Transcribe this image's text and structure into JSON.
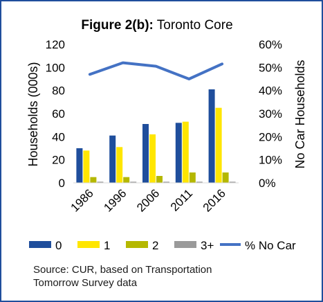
{
  "chart_data": {
    "type": "bar",
    "title_bold": "Figure 2(b):",
    "title_rest": " Toronto Core",
    "categories": [
      "1986",
      "1996",
      "2006",
      "2011",
      "2016"
    ],
    "ylabel": "Households (000s)",
    "ylabel_right": "No Car Households",
    "ylim": [
      0,
      120
    ],
    "yticks": [
      "0",
      "20",
      "40",
      "60",
      "80",
      "100",
      "120"
    ],
    "ylim_right": [
      0,
      60
    ],
    "yticks_right": [
      "0%",
      "10%",
      "20%",
      "30%",
      "40%",
      "50%",
      "60%"
    ],
    "grid": false,
    "legend_position": "bottom",
    "series": [
      {
        "name": "0",
        "color": "#1f4e9c",
        "values": [
          30,
          41,
          51,
          52,
          81
        ]
      },
      {
        "name": "1",
        "color": "#ffe600",
        "values": [
          28,
          31,
          42,
          53,
          65
        ]
      },
      {
        "name": "2",
        "color": "#b5b800",
        "values": [
          5,
          5,
          6,
          9,
          9
        ]
      },
      {
        "name": "3+",
        "color": "#9a9a9a",
        "values": [
          1,
          1,
          1,
          1,
          1
        ]
      }
    ],
    "line_series": {
      "name": "% No Car",
      "color": "#4472c4",
      "values": [
        47,
        52,
        50.5,
        45,
        51.5
      ]
    }
  },
  "source_line1": "Source: CUR, based on Transportation",
  "source_line2": "Tomorrow Survey data"
}
